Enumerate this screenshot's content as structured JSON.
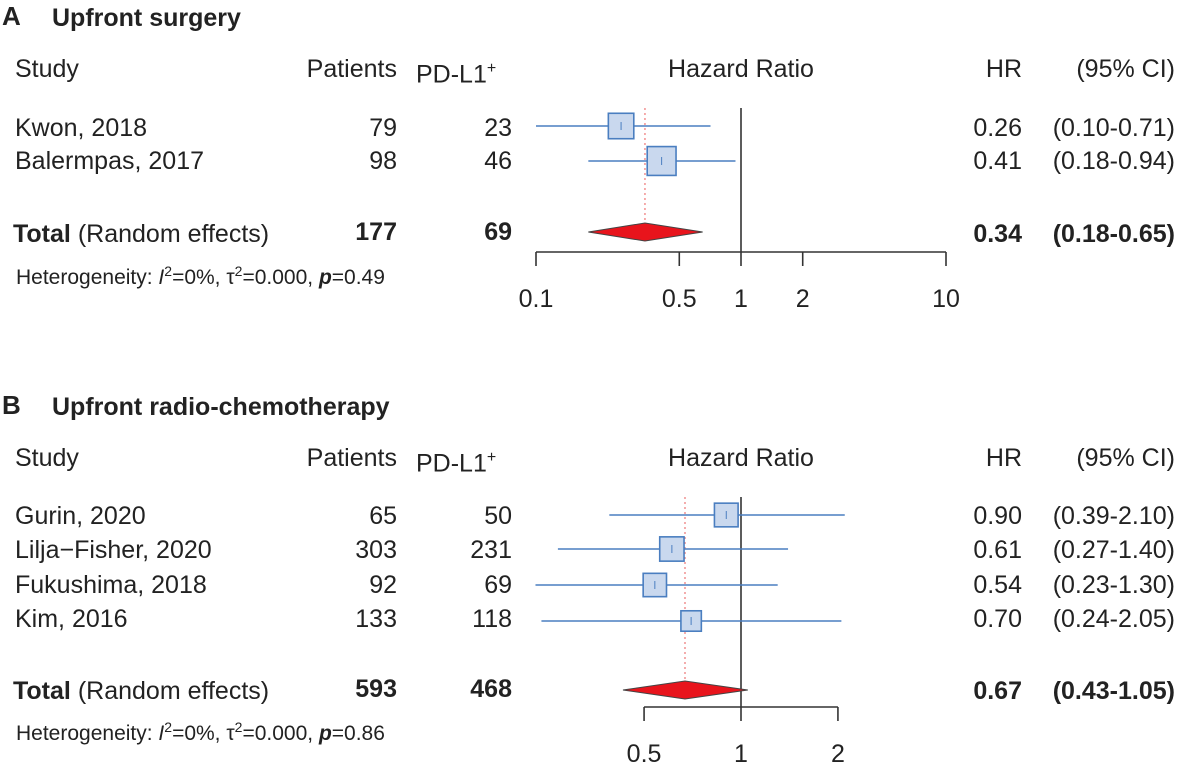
{
  "headers": {
    "study": "Study",
    "patients": "Patients",
    "pdl1": "PD-L1",
    "pdl1_sup": "+",
    "hazard": "Hazard Ratio",
    "hr": "HR",
    "ci": "(95% CI)"
  },
  "colors": {
    "box_fill": "#c9d8ee",
    "box_stroke": "#4a7ec0",
    "ci_line": "#4a7ec0",
    "diamond": "#e8141c",
    "ref_dotted": "#f08a8a",
    "axis": "#333333"
  },
  "panels": [
    {
      "letter": "A",
      "title": "Upfront surgery",
      "total_label_bold": "Total",
      "total_label_rest": " (Random effects)",
      "total_patients": "177",
      "total_pdl1": "69",
      "total_hr_text": "0.34",
      "total_ci_text": "(0.18-0.65)",
      "het": {
        "prefix": "Heterogeneity: ",
        "i": "I",
        "two": "2",
        "i_rest": "=0%, ",
        "tau": "τ",
        "tau_rest": "=0.000, ",
        "p": "p",
        "p_val": "=0.49"
      },
      "studies": [
        {
          "name": "Kwon, 2018",
          "patients": "79",
          "pdl1": "23",
          "hr_text": "0.26",
          "ci_text": "(0.10-0.71)"
        },
        {
          "name": "Balermpas, 2017",
          "patients": "98",
          "pdl1": "46",
          "hr_text": "0.41",
          "ci_text": "(0.18-0.94)"
        }
      ],
      "tick_labels": [
        "0.1",
        "0.5",
        "1",
        "2",
        "10"
      ]
    },
    {
      "letter": "B",
      "title": "Upfront radio-chemotherapy",
      "total_label_bold": "Total",
      "total_label_rest": " (Random effects)",
      "total_patients": "593",
      "total_pdl1": "468",
      "total_hr_text": "0.67",
      "total_ci_text": "(0.43-1.05)",
      "het": {
        "prefix": "Heterogeneity: ",
        "i": "I",
        "two": "2",
        "i_rest": "=0%, ",
        "tau": "τ",
        "tau_rest": "=0.000, ",
        "p": "p",
        "p_val": "=0.86"
      },
      "studies": [
        {
          "name": "Gurin, 2020",
          "patients": "65",
          "pdl1": "50",
          "hr_text": "0.90",
          "ci_text": "(0.39-2.10)"
        },
        {
          "name": "Lilja−Fisher, 2020",
          "patients": "303",
          "pdl1": "231",
          "hr_text": "0.61",
          "ci_text": "(0.27-1.40)"
        },
        {
          "name": "Fukushima, 2018",
          "patients": "92",
          "pdl1": "69",
          "hr_text": "0.54",
          "ci_text": "(0.23-1.30)"
        },
        {
          "name": "Kim, 2016",
          "patients": "133",
          "pdl1": "118",
          "hr_text": "0.70",
          "ci_text": "(0.24-2.05)"
        }
      ],
      "tick_labels": [
        "0.5",
        "1",
        "2"
      ]
    }
  ],
  "chart_data": [
    {
      "type": "forest",
      "title": "Upfront surgery",
      "xlabel": "Hazard Ratio",
      "scale": "log",
      "xlim": [
        0.1,
        10
      ],
      "ticks": [
        0.1,
        0.5,
        1,
        2,
        10
      ],
      "studies": [
        {
          "name": "Kwon, 2018",
          "hr": 0.26,
          "lo": 0.1,
          "hi": 0.71,
          "weight": 0.42
        },
        {
          "name": "Balermpas, 2017",
          "hr": 0.41,
          "lo": 0.18,
          "hi": 0.94,
          "weight": 0.58
        }
      ],
      "total": {
        "hr": 0.34,
        "lo": 0.18,
        "hi": 0.65
      }
    },
    {
      "type": "forest",
      "title": "Upfront radio-chemotherapy",
      "xlabel": "Hazard Ratio",
      "scale": "log",
      "xlim": [
        0.5,
        2
      ],
      "ticks": [
        0.5,
        1,
        2
      ],
      "studies": [
        {
          "name": "Gurin, 2020",
          "hr": 0.9,
          "lo": 0.39,
          "hi": 2.1,
          "weight": 0.27
        },
        {
          "name": "Lilja−Fisher, 2020",
          "hr": 0.61,
          "lo": 0.27,
          "hi": 1.4,
          "weight": 0.29
        },
        {
          "name": "Fukushima, 2018",
          "hr": 0.54,
          "lo": 0.23,
          "hi": 1.3,
          "weight": 0.26
        },
        {
          "name": "Kim, 2016",
          "hr": 0.7,
          "lo": 0.24,
          "hi": 2.05,
          "weight": 0.18
        }
      ],
      "total": {
        "hr": 0.67,
        "lo": 0.43,
        "hi": 1.05
      }
    }
  ]
}
